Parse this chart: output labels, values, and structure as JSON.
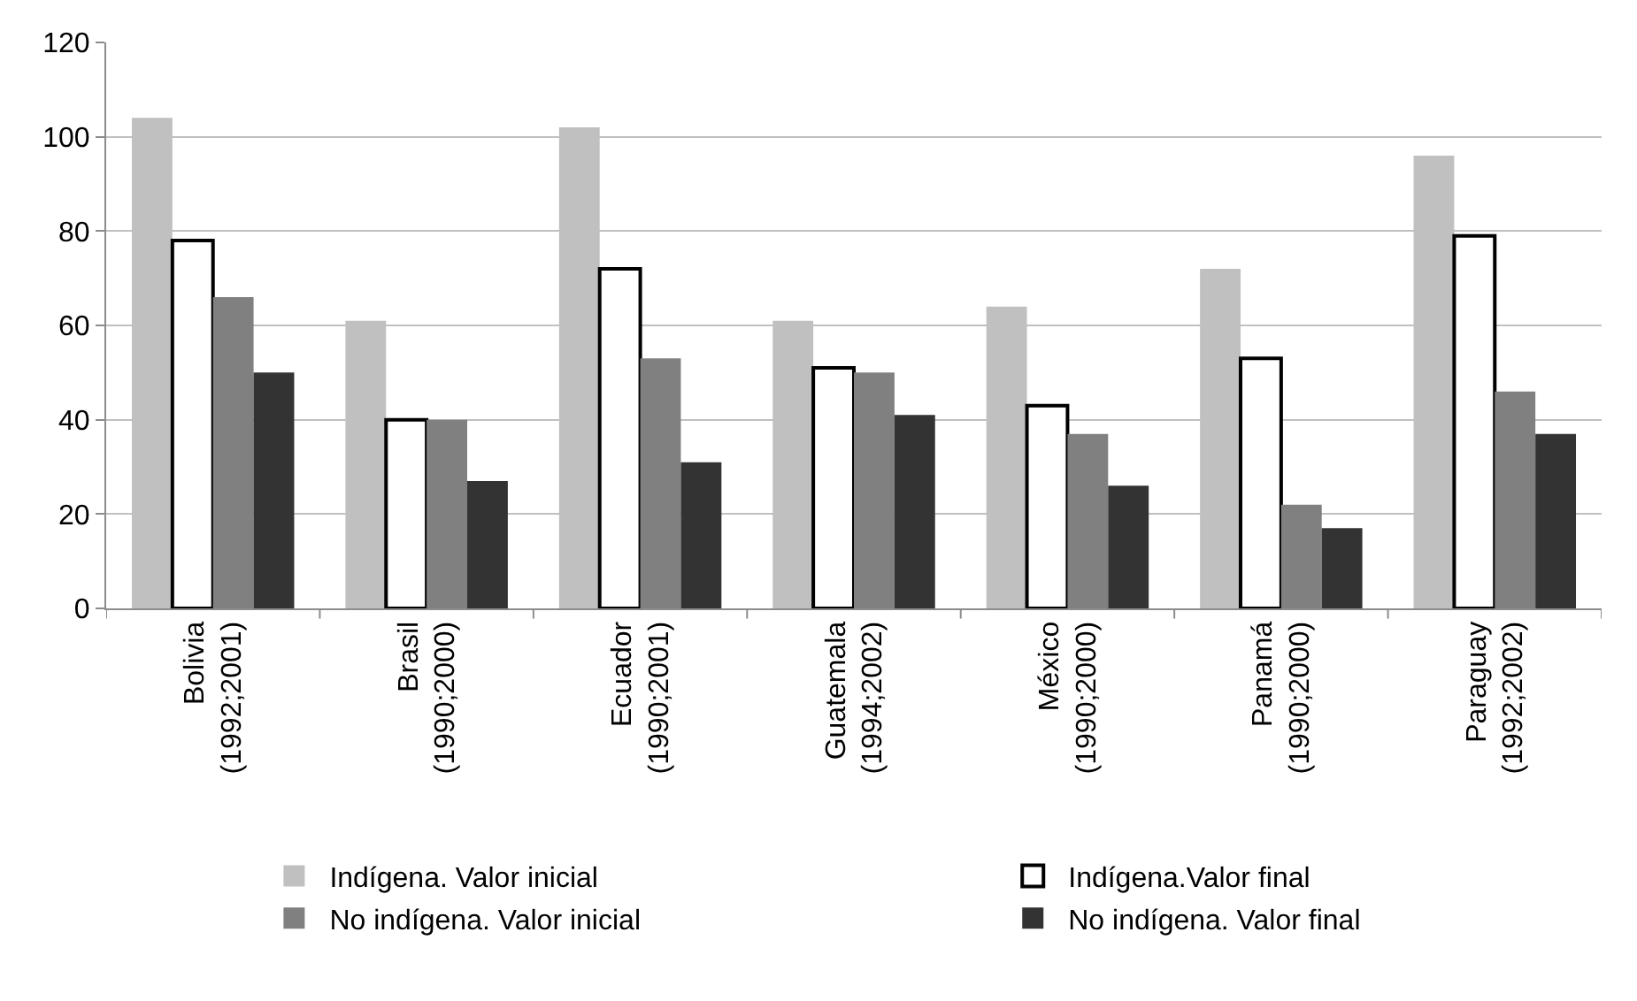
{
  "chart_data": {
    "type": "bar",
    "categories": [
      "Bolivia\n(1992;2001)",
      "Brasil\n(1990;2000)",
      "Ecuador\n(1990;2001)",
      "Guatemala\n(1994;2002)",
      "México\n(1990;2000)",
      "Panamá\n(1990;2000)",
      "Paraguay\n(1992;2002)"
    ],
    "series": [
      {
        "name": "Indígena. Valor inicial",
        "color": "#c0c0c0",
        "values": [
          104,
          61,
          102,
          61,
          64,
          72,
          96
        ]
      },
      {
        "name": "Indígena.Valor final",
        "color": "#ffffff",
        "values": [
          78,
          40,
          72,
          51,
          43,
          53,
          79
        ]
      },
      {
        "name": "No indígena. Valor inicial",
        "color": "#808080",
        "values": [
          66,
          40,
          53,
          50,
          37,
          22,
          46
        ]
      },
      {
        "name": "No indígena. Valor final",
        "color": "#333333",
        "values": [
          50,
          27,
          31,
          41,
          26,
          17,
          37
        ]
      }
    ],
    "ylim": [
      0,
      120
    ],
    "yticks": [
      0,
      20,
      40,
      60,
      80,
      100,
      120
    ],
    "grid": "y",
    "legend": "bottom"
  }
}
